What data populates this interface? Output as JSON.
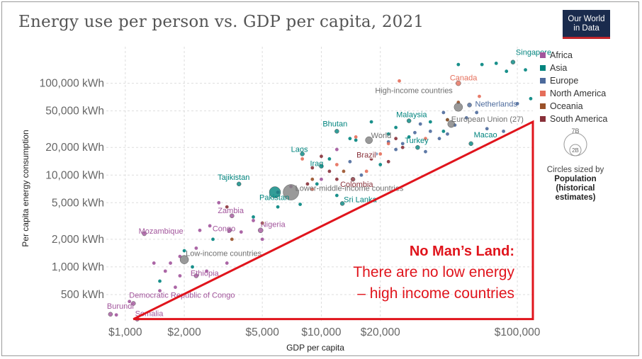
{
  "title": "Energy use per person vs. GDP per capita, 2021",
  "logo": {
    "line1": "Our World",
    "line2": "in Data"
  },
  "colors": {
    "Africa": "#a2559c",
    "Asia": "#00847e",
    "Europe": "#4c6a9c",
    "North America": "#e56e5a",
    "Oceania": "#9a5129",
    "South America": "#883039",
    "World": "#808080",
    "annotation": "#e0141c"
  },
  "legend": {
    "items": [
      "Africa",
      "Asia",
      "Europe",
      "North America",
      "Oceania",
      "South America"
    ],
    "size_top": "7B",
    "size_small": "2B",
    "size_label_1": "Circles sized by",
    "size_label_2": "Population",
    "size_label_3": "(historical",
    "size_label_4": "estimates)"
  },
  "annotation": {
    "heading": "No Man’s Land:",
    "line1": "There are no low energy",
    "line2": "– high income countries"
  },
  "chart_data": {
    "type": "scatter",
    "title": "Energy use per person vs. GDP per capita, 2021",
    "xlabel": "GDP per capita",
    "ylabel": "Per capita energy consumption",
    "xscale": "log",
    "yscale": "log",
    "xlim": [
      800,
      120000
    ],
    "ylim": [
      250,
      250000
    ],
    "xticks": [
      {
        "v": 1000,
        "label": "$1,000"
      },
      {
        "v": 2000,
        "label": "$2,000"
      },
      {
        "v": 5000,
        "label": "$5,000"
      },
      {
        "v": 10000,
        "label": "$10,000"
      },
      {
        "v": 20000,
        "label": "$20,000"
      },
      {
        "v": 100000,
        "label": "$100,000"
      }
    ],
    "yticks": [
      {
        "v": 500,
        "label": "500 kWh"
      },
      {
        "v": 1000,
        "label": "1,000 kWh"
      },
      {
        "v": 2000,
        "label": "2,000 kWh"
      },
      {
        "v": 5000,
        "label": "5,000 kWh"
      },
      {
        "v": 10000,
        "label": "10,000 kWh"
      },
      {
        "v": 20000,
        "label": "20,000 kWh"
      },
      {
        "v": 50000,
        "label": "50,000 kWh"
      },
      {
        "v": 100000,
        "label": "100,000 kWh"
      }
    ],
    "grid": true,
    "legend_position": "right",
    "labeled_points": [
      {
        "name": "Singapore",
        "region": "Asia",
        "x": 95000,
        "y": 170000,
        "r": 3
      },
      {
        "name": "Canada",
        "region": "North America",
        "x": 50000,
        "y": 100000,
        "r": 3.5
      },
      {
        "name": "Netherlands",
        "region": "Europe",
        "x": 57000,
        "y": 58000,
        "r": 3
      },
      {
        "name": "High-income countries",
        "region": "World",
        "x": 50000,
        "y": 55000,
        "r": 6
      },
      {
        "name": "European Union (27)",
        "region": "World",
        "x": 46000,
        "y": 36000,
        "r": 5
      },
      {
        "name": "Malaysia",
        "region": "Asia",
        "x": 28000,
        "y": 39000,
        "r": 3
      },
      {
        "name": "Turkey",
        "region": "Asia",
        "x": 31000,
        "y": 20000,
        "r": 3
      },
      {
        "name": "Macao",
        "region": "Asia",
        "x": 58000,
        "y": 22000,
        "r": 3
      },
      {
        "name": "World",
        "region": "World",
        "x": 17500,
        "y": 24000,
        "r": 5
      },
      {
        "name": "Brazil",
        "region": "South America",
        "x": 15500,
        "y": 17000,
        "r": 3
      },
      {
        "name": "Bhutan",
        "region": "Asia",
        "x": 12000,
        "y": 30000,
        "r": 3
      },
      {
        "name": "Laos",
        "region": "Asia",
        "x": 8000,
        "y": 17000,
        "r": 3
      },
      {
        "name": "Iraq",
        "region": "Asia",
        "x": 10000,
        "y": 12500,
        "r": 3
      },
      {
        "name": "Colombia",
        "region": "South America",
        "x": 14500,
        "y": 9000,
        "r": 3
      },
      {
        "name": "Lower-middle-income countries",
        "region": "World",
        "x": 7000,
        "y": 6500,
        "r": 11
      },
      {
        "name": "Tajikistan",
        "region": "Asia",
        "x": 3800,
        "y": 8000,
        "r": 3
      },
      {
        "name": "Pakistan",
        "region": "Asia",
        "x": 5800,
        "y": 6500,
        "r": 8
      },
      {
        "name": "Sri Lanka",
        "region": "Asia",
        "x": 12800,
        "y": 4900,
        "r": 3
      },
      {
        "name": "Zambia",
        "region": "Africa",
        "x": 3500,
        "y": 3600,
        "r": 3
      },
      {
        "name": "Nigeria",
        "region": "Africa",
        "x": 4900,
        "y": 2500,
        "r": 3.5
      },
      {
        "name": "Congo",
        "region": "Africa",
        "x": 3400,
        "y": 2500,
        "r": 3
      },
      {
        "name": "Mozambique",
        "region": "Africa",
        "x": 1250,
        "y": 2300,
        "r": 3
      },
      {
        "name": "Low-income countries",
        "region": "World",
        "x": 2000,
        "y": 1200,
        "r": 6
      },
      {
        "name": "Ethiopia",
        "region": "Africa",
        "x": 2300,
        "y": 800,
        "r": 3
      },
      {
        "name": "Democratic Republic of Congo",
        "region": "Africa",
        "x": 1100,
        "y": 400,
        "r": 3
      },
      {
        "name": "Burundi",
        "region": "Africa",
        "x": 840,
        "y": 305,
        "r": 3
      },
      {
        "name": "Somalia",
        "region": "Africa",
        "x": 1150,
        "y": 270,
        "r": 3
      }
    ],
    "other_points": [
      {
        "region": "Asia",
        "x": 78000,
        "y": 165000
      },
      {
        "region": "Asia",
        "x": 88000,
        "y": 135000
      },
      {
        "region": "Asia",
        "x": 110000,
        "y": 140000
      },
      {
        "region": "Asia",
        "x": 117000,
        "y": 68000
      },
      {
        "region": "Asia",
        "x": 66000,
        "y": 160000
      },
      {
        "region": "Asia",
        "x": 50000,
        "y": 160000
      },
      {
        "region": "Asia",
        "x": 44000,
        "y": 40000
      },
      {
        "region": "Asia",
        "x": 42000,
        "y": 30000
      },
      {
        "region": "Asia",
        "x": 36000,
        "y": 38000
      },
      {
        "region": "Asia",
        "x": 24000,
        "y": 33000
      },
      {
        "region": "Asia",
        "x": 22000,
        "y": 28000
      },
      {
        "region": "Asia",
        "x": 28000,
        "y": 26000
      },
      {
        "region": "Asia",
        "x": 20000,
        "y": 13000
      },
      {
        "region": "Asia",
        "x": 18000,
        "y": 38000
      },
      {
        "region": "Asia",
        "x": 14000,
        "y": 25000
      },
      {
        "region": "Asia",
        "x": 11000,
        "y": 15000
      },
      {
        "region": "Asia",
        "x": 9500,
        "y": 8000
      },
      {
        "region": "Asia",
        "x": 6000,
        "y": 4500
      },
      {
        "region": "Asia",
        "x": 4500,
        "y": 3500
      },
      {
        "region": "Asia",
        "x": 7800,
        "y": 4800
      },
      {
        "region": "Asia",
        "x": 2000,
        "y": 1500
      },
      {
        "region": "Asia",
        "x": 2200,
        "y": 1000
      },
      {
        "region": "Asia",
        "x": 1500,
        "y": 700
      },
      {
        "region": "Asia",
        "x": 2800,
        "y": 2000
      },
      {
        "region": "Asia",
        "x": 12000,
        "y": 6000
      },
      {
        "region": "Asia",
        "x": 15000,
        "y": 24000
      },
      {
        "region": "Europe",
        "x": 62000,
        "y": 48000
      },
      {
        "region": "Europe",
        "x": 70000,
        "y": 32000
      },
      {
        "region": "Europe",
        "x": 55000,
        "y": 42000
      },
      {
        "region": "Europe",
        "x": 48000,
        "y": 35000
      },
      {
        "region": "Europe",
        "x": 44000,
        "y": 28000
      },
      {
        "region": "Europe",
        "x": 40000,
        "y": 25000
      },
      {
        "region": "Europe",
        "x": 36000,
        "y": 30000
      },
      {
        "region": "Europe",
        "x": 32000,
        "y": 36000
      },
      {
        "region": "Europe",
        "x": 30000,
        "y": 29000
      },
      {
        "region": "Europe",
        "x": 26000,
        "y": 22000
      },
      {
        "region": "Europe",
        "x": 24000,
        "y": 19000
      },
      {
        "region": "Europe",
        "x": 22000,
        "y": 23000
      },
      {
        "region": "Europe",
        "x": 19000,
        "y": 17000
      },
      {
        "region": "Europe",
        "x": 34000,
        "y": 18000
      },
      {
        "region": "Europe",
        "x": 85000,
        "y": 30000
      },
      {
        "region": "Europe",
        "x": 100000,
        "y": 60000
      },
      {
        "region": "Europe",
        "x": 14000,
        "y": 14000
      },
      {
        "region": "Europe",
        "x": 16000,
        "y": 10000
      },
      {
        "region": "Europe",
        "x": 42000,
        "y": 48000
      },
      {
        "region": "North America",
        "x": 64000,
        "y": 72000
      },
      {
        "region": "North America",
        "x": 25000,
        "y": 106000
      },
      {
        "region": "North America",
        "x": 20000,
        "y": 17000
      },
      {
        "region": "North America",
        "x": 17000,
        "y": 11000
      },
      {
        "region": "North America",
        "x": 15000,
        "y": 26000
      },
      {
        "region": "North America",
        "x": 12000,
        "y": 13000
      },
      {
        "region": "North America",
        "x": 9000,
        "y": 7000
      },
      {
        "region": "North America",
        "x": 22000,
        "y": 22000
      },
      {
        "region": "North America",
        "x": 34000,
        "y": 25000
      },
      {
        "region": "North America",
        "x": 8000,
        "y": 15000
      },
      {
        "region": "Oceania",
        "x": 50000,
        "y": 62000
      },
      {
        "region": "Oceania",
        "x": 44000,
        "y": 40000
      },
      {
        "region": "Oceania",
        "x": 5000,
        "y": 3000
      },
      {
        "region": "Oceania",
        "x": 3500,
        "y": 2000
      },
      {
        "region": "Oceania",
        "x": 13000,
        "y": 11000
      },
      {
        "region": "Oceania",
        "x": 9000,
        "y": 9000
      },
      {
        "region": "South America",
        "x": 26000,
        "y": 20000
      },
      {
        "region": "South America",
        "x": 22000,
        "y": 14000
      },
      {
        "region": "South America",
        "x": 18000,
        "y": 15000
      },
      {
        "region": "South America",
        "x": 12000,
        "y": 9000
      },
      {
        "region": "South America",
        "x": 11000,
        "y": 11000
      },
      {
        "region": "South America",
        "x": 9000,
        "y": 12000
      },
      {
        "region": "South America",
        "x": 8500,
        "y": 8000
      },
      {
        "region": "South America",
        "x": 3300,
        "y": 4500
      },
      {
        "region": "South America",
        "x": 24000,
        "y": 25000
      },
      {
        "region": "South America",
        "x": 10000,
        "y": 16000
      },
      {
        "region": "Africa",
        "x": 3000,
        "y": 5000
      },
      {
        "region": "Africa",
        "x": 2400,
        "y": 2500
      },
      {
        "region": "Africa",
        "x": 2300,
        "y": 1600
      },
      {
        "region": "Africa",
        "x": 1900,
        "y": 1300
      },
      {
        "region": "Africa",
        "x": 1700,
        "y": 1100
      },
      {
        "region": "Africa",
        "x": 1400,
        "y": 1100
      },
      {
        "region": "Africa",
        "x": 1600,
        "y": 900
      },
      {
        "region": "Africa",
        "x": 1900,
        "y": 800
      },
      {
        "region": "Africa",
        "x": 1800,
        "y": 600
      },
      {
        "region": "Africa",
        "x": 1500,
        "y": 550
      },
      {
        "region": "Africa",
        "x": 1050,
        "y": 420
      },
      {
        "region": "Africa",
        "x": 900,
        "y": 300
      },
      {
        "region": "Africa",
        "x": 2600,
        "y": 900
      },
      {
        "region": "Africa",
        "x": 3300,
        "y": 1100
      },
      {
        "region": "Africa",
        "x": 4500,
        "y": 3200
      },
      {
        "region": "Africa",
        "x": 5000,
        "y": 2000
      },
      {
        "region": "Africa",
        "x": 7000,
        "y": 7500
      },
      {
        "region": "Africa",
        "x": 10000,
        "y": 9000
      },
      {
        "region": "Africa",
        "x": 12000,
        "y": 19000
      },
      {
        "region": "Africa",
        "x": 6000,
        "y": 6500
      },
      {
        "region": "Africa",
        "x": 2700,
        "y": 2800
      },
      {
        "region": "Africa",
        "x": 3900,
        "y": 2400
      }
    ],
    "highlight_triangle": {
      "vertices": [
        [
          1100,
          270
        ],
        [
          120000,
          270
        ],
        [
          120000,
          38000
        ]
      ],
      "color": "#e0141c"
    }
  }
}
